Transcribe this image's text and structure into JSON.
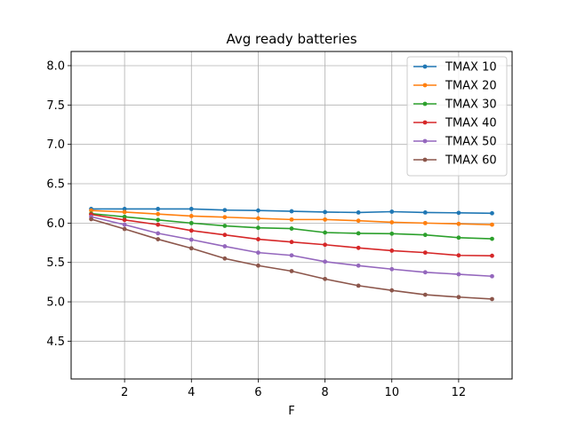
{
  "chart_data": {
    "type": "line",
    "title": "Avg ready batteries",
    "xlabel": "F",
    "ylabel": "",
    "xlim": [
      0.4,
      13.6
    ],
    "ylim": [
      4.02,
      8.18
    ],
    "xticks": [
      2,
      4,
      6,
      8,
      10,
      12
    ],
    "yticks": [
      4.5,
      5.0,
      5.5,
      6.0,
      6.5,
      7.0,
      7.5,
      8.0
    ],
    "xtick_labels": [
      "2",
      "4",
      "6",
      "8",
      "10",
      "12"
    ],
    "ytick_labels": [
      "4.5",
      "5.0",
      "5.5",
      "6.0",
      "6.5",
      "7.0",
      "7.5",
      "8.0"
    ],
    "grid": true,
    "legend_position": "upper-right",
    "marker": "circle",
    "x": [
      1,
      2,
      3,
      4,
      5,
      6,
      7,
      8,
      9,
      10,
      11,
      12,
      13
    ],
    "series": [
      {
        "name": "TMAX 10",
        "color": "#1f77b4",
        "values": [
          6.18,
          6.18,
          6.18,
          6.18,
          6.165,
          6.16,
          6.15,
          6.14,
          6.135,
          6.145,
          6.135,
          6.13,
          6.125
        ]
      },
      {
        "name": "TMAX 20",
        "color": "#ff7f0e",
        "values": [
          6.16,
          6.14,
          6.115,
          6.09,
          6.075,
          6.06,
          6.045,
          6.045,
          6.03,
          6.01,
          6.0,
          5.99,
          5.98
        ]
      },
      {
        "name": "TMAX 30",
        "color": "#2ca02c",
        "values": [
          6.12,
          6.08,
          6.04,
          6.0,
          5.965,
          5.94,
          5.93,
          5.88,
          5.87,
          5.865,
          5.85,
          5.815,
          5.8
        ]
      },
      {
        "name": "TMAX 40",
        "color": "#d62728",
        "values": [
          6.11,
          6.04,
          5.98,
          5.905,
          5.85,
          5.795,
          5.76,
          5.725,
          5.685,
          5.65,
          5.625,
          5.59,
          5.585
        ]
      },
      {
        "name": "TMAX 50",
        "color": "#9467bd",
        "values": [
          6.08,
          5.98,
          5.87,
          5.79,
          5.705,
          5.625,
          5.59,
          5.51,
          5.46,
          5.415,
          5.375,
          5.35,
          5.325
        ]
      },
      {
        "name": "TMAX 60",
        "color": "#8c564b",
        "values": [
          6.05,
          5.925,
          5.795,
          5.68,
          5.55,
          5.46,
          5.39,
          5.29,
          5.205,
          5.145,
          5.09,
          5.06,
          5.035
        ]
      }
    ]
  }
}
